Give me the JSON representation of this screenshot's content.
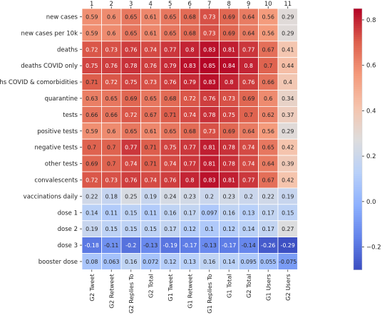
{
  "chart_data": {
    "type": "heatmap",
    "col_numbers": [
      "1",
      "2",
      "3",
      "4",
      "5",
      "6",
      "7",
      "8",
      "9",
      "10",
      "11"
    ],
    "x_labels": [
      "G2 Tweet",
      "G2 Retweet",
      "G2 Replies To",
      "G2 Total",
      "G1 Tweet",
      "G1 Retweet",
      "G1 Replies To",
      "G1 Total",
      "G2 Total",
      "G1 Users",
      "G2 Users"
    ],
    "y_labels": [
      "new cases",
      "new cases per 10k",
      "deaths",
      "deaths COVID only",
      "deaths COVID & comorbidities",
      "quarantine",
      "tests",
      "positive tests",
      "negative tests",
      "other tests",
      "convalescents",
      "vaccinations daily",
      "dose 1",
      "dose 2",
      "dose 3",
      "booster dose"
    ],
    "values": [
      [
        0.59,
        0.6,
        0.65,
        0.61,
        0.65,
        0.68,
        0.73,
        0.69,
        0.64,
        0.56,
        0.29
      ],
      [
        0.59,
        0.6,
        0.65,
        0.61,
        0.65,
        0.68,
        0.73,
        0.69,
        0.64,
        0.56,
        0.29
      ],
      [
        0.72,
        0.73,
        0.76,
        0.74,
        0.77,
        0.8,
        0.83,
        0.81,
        0.77,
        0.67,
        0.41
      ],
      [
        0.75,
        0.76,
        0.78,
        0.76,
        0.79,
        0.83,
        0.85,
        0.84,
        0.8,
        0.7,
        0.44
      ],
      [
        0.71,
        0.72,
        0.75,
        0.73,
        0.76,
        0.79,
        0.83,
        0.8,
        0.76,
        0.66,
        0.4
      ],
      [
        0.63,
        0.65,
        0.69,
        0.65,
        0.68,
        0.72,
        0.76,
        0.73,
        0.69,
        0.6,
        0.34
      ],
      [
        0.66,
        0.66,
        0.72,
        0.67,
        0.71,
        0.74,
        0.78,
        0.75,
        0.7,
        0.62,
        0.37
      ],
      [
        0.59,
        0.6,
        0.65,
        0.61,
        0.65,
        0.68,
        0.73,
        0.69,
        0.64,
        0.56,
        0.29
      ],
      [
        0.7,
        0.7,
        0.77,
        0.71,
        0.75,
        0.77,
        0.81,
        0.78,
        0.74,
        0.65,
        0.42
      ],
      [
        0.69,
        0.7,
        0.74,
        0.71,
        0.74,
        0.77,
        0.81,
        0.78,
        0.74,
        0.64,
        0.39
      ],
      [
        0.72,
        0.73,
        0.76,
        0.74,
        0.76,
        0.8,
        0.83,
        0.81,
        0.77,
        0.67,
        0.42
      ],
      [
        0.22,
        0.18,
        0.25,
        0.19,
        0.24,
        0.23,
        0.2,
        0.23,
        0.2,
        0.22,
        0.19
      ],
      [
        0.14,
        0.11,
        0.15,
        0.11,
        0.16,
        0.17,
        0.097,
        0.16,
        0.13,
        0.17,
        0.15
      ],
      [
        0.19,
        0.15,
        0.15,
        0.15,
        0.17,
        0.12,
        0.1,
        0.12,
        0.14,
        0.17,
        0.27
      ],
      [
        -0.18,
        -0.11,
        -0.2,
        -0.13,
        -0.19,
        -0.17,
        -0.13,
        -0.17,
        -0.14,
        -0.26,
        -0.29
      ],
      [
        0.08,
        0.063,
        0.16,
        0.072,
        0.12,
        0.13,
        0.16,
        0.14,
        0.095,
        0.055,
        -0.075
      ]
    ],
    "cell_labels": [
      [
        "0.59",
        "0.6",
        "0.65",
        "0.61",
        "0.65",
        "0.68",
        "0.73",
        "0.69",
        "0.64",
        "0.56",
        "0.29"
      ],
      [
        "0.59",
        "0.6",
        "0.65",
        "0.61",
        "0.65",
        "0.68",
        "0.73",
        "0.69",
        "0.64",
        "0.56",
        "0.29"
      ],
      [
        "0.72",
        "0.73",
        "0.76",
        "0.74",
        "0.77",
        "0.8",
        "0.83",
        "0.81",
        "0.77",
        "0.67",
        "0.41"
      ],
      [
        "0.75",
        "0.76",
        "0.78",
        "0.76",
        "0.79",
        "0.83",
        "0.85",
        "0.84",
        "0.8",
        "0.7",
        "0.44"
      ],
      [
        "0.71",
        "0.72",
        "0.75",
        "0.73",
        "0.76",
        "0.79",
        "0.83",
        "0.8",
        "0.76",
        "0.66",
        "0.4"
      ],
      [
        "0.63",
        "0.65",
        "0.69",
        "0.65",
        "0.68",
        "0.72",
        "0.76",
        "0.73",
        "0.69",
        "0.6",
        "0.34"
      ],
      [
        "0.66",
        "0.66",
        "0.72",
        "0.67",
        "0.71",
        "0.74",
        "0.78",
        "0.75",
        "0.7",
        "0.62",
        "0.37"
      ],
      [
        "0.59",
        "0.6",
        "0.65",
        "0.61",
        "0.65",
        "0.68",
        "0.73",
        "0.69",
        "0.64",
        "0.56",
        "0.29"
      ],
      [
        "0.7",
        "0.7",
        "0.77",
        "0.71",
        "0.75",
        "0.77",
        "0.81",
        "0.78",
        "0.74",
        "0.65",
        "0.42"
      ],
      [
        "0.69",
        "0.7",
        "0.74",
        "0.71",
        "0.74",
        "0.77",
        "0.81",
        "0.78",
        "0.74",
        "0.64",
        "0.39"
      ],
      [
        "0.72",
        "0.73",
        "0.76",
        "0.74",
        "0.76",
        "0.8",
        "0.83",
        "0.81",
        "0.77",
        "0.67",
        "0.42"
      ],
      [
        "0.22",
        "0.18",
        "0.25",
        "0.19",
        "0.24",
        "0.23",
        "0.2",
        "0.23",
        "0.2",
        "0.22",
        "0.19"
      ],
      [
        "0.14",
        "0.11",
        "0.15",
        "0.11",
        "0.16",
        "0.17",
        "0.097",
        "0.16",
        "0.13",
        "0.17",
        "0.15"
      ],
      [
        "0.19",
        "0.15",
        "0.15",
        "0.15",
        "0.17",
        "0.12",
        "0.1",
        "0.12",
        "0.14",
        "0.17",
        "0.27"
      ],
      [
        "-0.18",
        "-0.11",
        "-0.2",
        "-0.13",
        "-0.19",
        "-0.17",
        "-0.13",
        "-0.17",
        "-0.14",
        "-0.26",
        "-0.29"
      ],
      [
        "0.08",
        "0.063",
        "0.16",
        "0.072",
        "0.12",
        "0.13",
        "0.16",
        "0.14",
        "0.095",
        "0.055",
        "-0.075"
      ]
    ],
    "colorbar": {
      "range": [
        -0.3,
        0.85
      ],
      "ticks": [
        -0.2,
        0.0,
        0.2,
        0.4,
        0.6,
        0.8
      ],
      "tick_labels": [
        "−0.2",
        "0.0",
        "0.2",
        "0.4",
        "0.6",
        "0.8"
      ]
    },
    "colormap": "coolwarm",
    "title": "",
    "xlabel": "",
    "ylabel": ""
  }
}
